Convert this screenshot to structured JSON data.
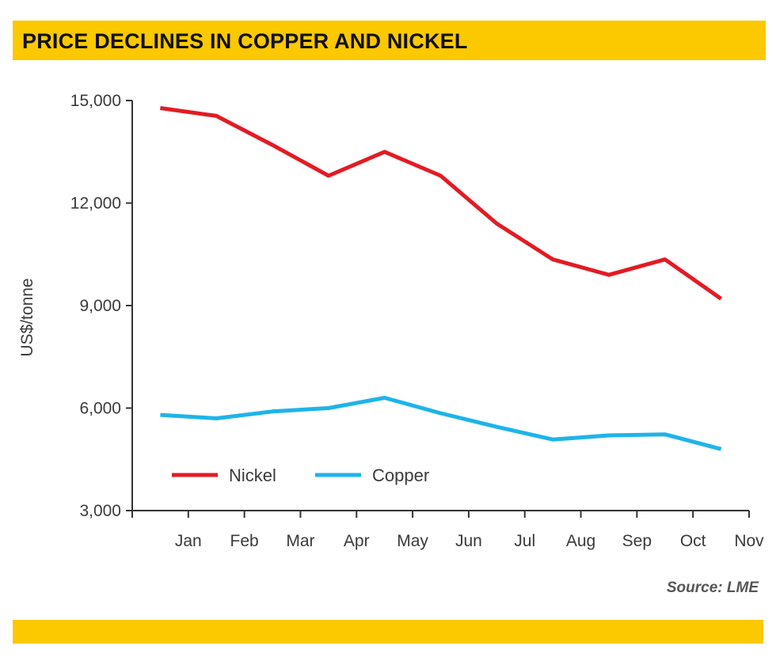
{
  "header": {
    "title": "PRICE DECLINES IN COPPER AND NICKEL"
  },
  "colors": {
    "banner": "#FCC800",
    "nickel": "#E31B23",
    "copper": "#1EB4E9"
  },
  "source": "Source: LME",
  "chart_data": {
    "type": "line",
    "title": "PRICE DECLINES IN COPPER AND NICKEL",
    "xlabel": "",
    "ylabel": "US$/tonne",
    "categories": [
      "Jan",
      "Feb",
      "Mar",
      "Apr",
      "May",
      "Jun",
      "Jul",
      "Aug",
      "Sep",
      "Oct",
      "Nov"
    ],
    "ylim": [
      3000,
      15000
    ],
    "yticks": [
      3000,
      6000,
      9000,
      12000,
      15000
    ],
    "ytick_labels": [
      "3,000",
      "6,000",
      "9,000",
      "12,000",
      "15,000"
    ],
    "legend_position": "bottom-left",
    "grid": false,
    "series": [
      {
        "name": "Nickel",
        "x": [
          0.5,
          1.5,
          2.5,
          3.5,
          4.5,
          5.5,
          6.5,
          7.5,
          8.5,
          9.5,
          10.5
        ],
        "values": [
          14780,
          14550,
          13700,
          12800,
          13500,
          12800,
          11400,
          10350,
          9900,
          10350,
          9200
        ]
      },
      {
        "name": "Copper",
        "x": [
          0.5,
          1.5,
          2.5,
          3.5,
          4.5,
          5.5,
          6.5,
          7.5,
          8.5,
          9.5,
          10.5
        ],
        "values": [
          5800,
          5700,
          5900,
          6000,
          6300,
          5850,
          5450,
          5080,
          5200,
          5230,
          4800
        ]
      }
    ]
  }
}
